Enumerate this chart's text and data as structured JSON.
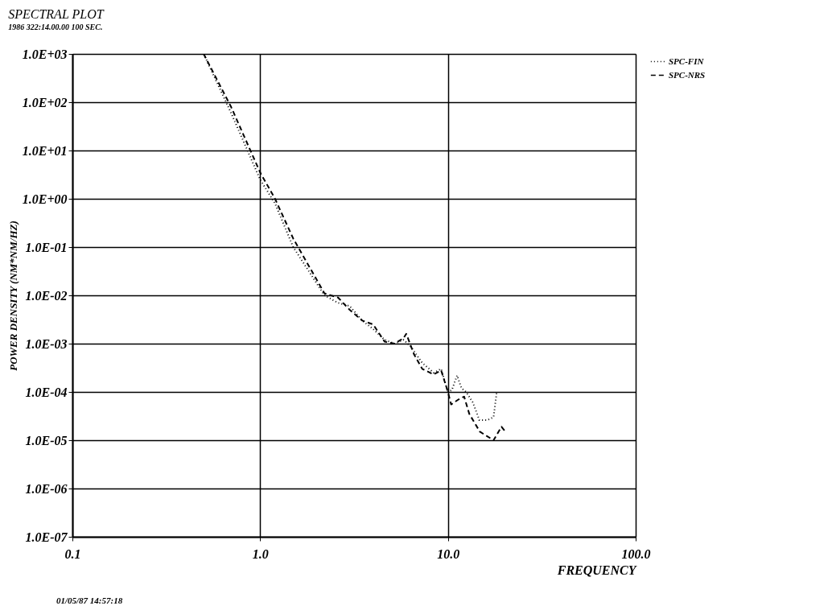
{
  "chart_data": {
    "type": "line",
    "title": "SPECTRAL PLOT",
    "subtitle": "1986 322:14.00.00 100 SEC.",
    "xlabel": "FREQUENCY",
    "ylabel": "POWER DENSITY (NM*NM/HZ)",
    "annotations": [
      "01/05/87 14:57:18"
    ],
    "log": "xy",
    "grid": true,
    "legend": "top right",
    "marker": "none",
    "xlim": [
      0.1,
      100
    ],
    "xticks": [
      {
        "value": 0.1,
        "label": "0.1"
      },
      {
        "value": 1,
        "label": "1.0"
      },
      {
        "value": 10,
        "label": "10.0"
      },
      {
        "value": 100,
        "label": "100.0"
      }
    ],
    "ylim": [
      1e-07,
      1000
    ],
    "yticks": [
      {
        "value": 1e-07,
        "label": "1.0E-07"
      },
      {
        "value": 1e-06,
        "label": "1.0E-06"
      },
      {
        "value": 1e-05,
        "label": "1.0E-05"
      },
      {
        "value": 0.0001,
        "label": "1.0E-04"
      },
      {
        "value": 0.001,
        "label": "1.0E-03"
      },
      {
        "value": 0.01,
        "label": "1.0E-02"
      },
      {
        "value": 0.1,
        "label": "1.0E-01"
      },
      {
        "value": 1,
        "label": "1.0E+00"
      },
      {
        "value": 10,
        "label": "1.0E+01"
      },
      {
        "value": 100,
        "label": "1.0E+02"
      },
      {
        "value": 1000,
        "label": "1.0E+03"
      }
    ],
    "series": [
      {
        "name": "SPC-FIN",
        "color": "#000000",
        "line_style": "dotted",
        "x": [
          0.5,
          0.7,
          1.0,
          1.2,
          1.5,
          2.2,
          2.6,
          3.0,
          3.5,
          4.0,
          4.6,
          5.2,
          5.8,
          6.3,
          7.3,
          8.4,
          9.2,
          10,
          10.5,
          11.2,
          11.8,
          12.5,
          13.6,
          14.7,
          16.2,
          17.5,
          18.2
        ],
        "values": [
          1000,
          60,
          2.5,
          0.8,
          0.1,
          0.01,
          0.007,
          0.006,
          0.003,
          0.002,
          0.0012,
          0.001,
          0.0012,
          0.0009,
          0.0004,
          0.00025,
          0.0003,
          0.0001,
          0.00011,
          0.00022,
          0.00012,
          0.0001,
          6e-05,
          2.6e-05,
          2.6e-05,
          3e-05,
          0.0001
        ]
      },
      {
        "name": "SPC-NRS",
        "color": "#000000",
        "line_style": "dashed",
        "x": [
          0.5,
          0.7,
          1.0,
          1.2,
          1.5,
          2.2,
          2.6,
          3.0,
          3.5,
          4.0,
          4.6,
          5.2,
          5.8,
          6.0,
          6.6,
          7.3,
          8.4,
          9.2,
          10,
          10.4,
          11.4,
          12.2,
          13,
          14.8,
          17.5,
          19.3,
          20
        ],
        "values": [
          1000,
          80,
          3.5,
          1.0,
          0.15,
          0.011,
          0.009,
          0.005,
          0.003,
          0.0025,
          0.0011,
          0.001,
          0.0013,
          0.0016,
          0.0006,
          0.0003,
          0.00023,
          0.00028,
          0.0001,
          5.5e-05,
          7e-05,
          8e-05,
          3.5e-05,
          1.5e-05,
          1e-05,
          1.9e-05,
          1.6e-05
        ]
      }
    ]
  }
}
